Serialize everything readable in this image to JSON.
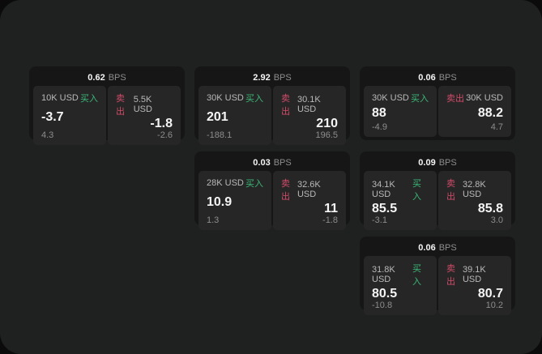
{
  "labels": {
    "buy": "买入",
    "sell": "卖出",
    "bps_unit": "BPS"
  },
  "colors": {
    "page_bg": "#0b0b0b",
    "window_bg": "#1f2020",
    "card_bg": "#161616",
    "panel_bg": "#262626",
    "buy_green": "#3bb878",
    "sell_red": "#d14b69",
    "text_primary": "#f5f5f5",
    "text_secondary": "#b9b9b9",
    "text_muted": "#8d8d8d"
  },
  "cards": [
    {
      "bps": "0.62",
      "buy": {
        "amount": "10K USD",
        "price": "-3.7",
        "sub": "4.3"
      },
      "sell": {
        "amount": "5.5K USD",
        "price": "-1.8",
        "sub": "-2.6"
      }
    },
    {
      "bps": "2.92",
      "buy": {
        "amount": "30K USD",
        "price": "201",
        "sub": "-188.1"
      },
      "sell": {
        "amount": "30.1K USD",
        "price": "210",
        "sub": "196.5"
      }
    },
    {
      "bps": "0.06",
      "buy": {
        "amount": "30K USD",
        "price": "88",
        "sub": "-4.9"
      },
      "sell": {
        "amount": "30K USD",
        "price": "88.2",
        "sub": "4.7"
      }
    },
    {
      "bps": "0.03",
      "buy": {
        "amount": "28K USD",
        "price": "10.9",
        "sub": "1.3"
      },
      "sell": {
        "amount": "32.6K USD",
        "price": "11",
        "sub": "-1.8"
      }
    },
    {
      "bps": "0.09",
      "buy": {
        "amount": "34.1K USD",
        "price": "85.5",
        "sub": "-3.1"
      },
      "sell": {
        "amount": "32.8K USD",
        "price": "85.8",
        "sub": "3.0"
      }
    },
    {
      "bps": "0.06",
      "buy": {
        "amount": "31.8K USD",
        "price": "80.5",
        "sub": "-10.8"
      },
      "sell": {
        "amount": "39.1K USD",
        "price": "80.7",
        "sub": "10.2"
      }
    }
  ]
}
